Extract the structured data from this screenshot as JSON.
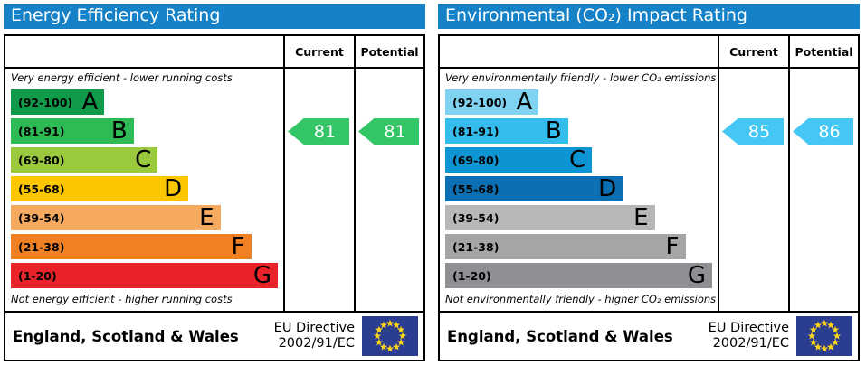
{
  "eu_flag": {
    "bg": "#2b3d90",
    "star": "#ffd617"
  },
  "chart_data": [
    {
      "type": "bar",
      "title": "Energy Efficiency Rating",
      "header_color": "#1581c7",
      "columns": {
        "current": "Current",
        "potential": "Potential"
      },
      "top_note": "Very energy efficient - lower running costs",
      "bottom_note": "Not energy efficient - higher running costs",
      "bands": [
        {
          "letter": "A",
          "range": "(92-100)",
          "range_min": 92,
          "range_max": 100,
          "color": "#119a49",
          "width_pct": 35
        },
        {
          "letter": "B",
          "range": "(81-91)",
          "range_min": 81,
          "range_max": 91,
          "color": "#2eba55",
          "width_pct": 46
        },
        {
          "letter": "C",
          "range": "(69-80)",
          "range_min": 69,
          "range_max": 80,
          "color": "#9ac93d",
          "width_pct": 55
        },
        {
          "letter": "D",
          "range": "(55-68)",
          "range_min": 55,
          "range_max": 68,
          "color": "#fdc700",
          "width_pct": 66.5
        },
        {
          "letter": "E",
          "range": "(39-54)",
          "range_min": 39,
          "range_max": 54,
          "color": "#f6aa60",
          "width_pct": 78.5
        },
        {
          "letter": "F",
          "range": "(21-38)",
          "range_min": 21,
          "range_max": 38,
          "color": "#ef8023",
          "width_pct": 90
        },
        {
          "letter": "G",
          "range": "(1-20)",
          "range_min": 1,
          "range_max": 20,
          "color": "#ea2229",
          "width_pct": 100
        }
      ],
      "current": {
        "value": 81,
        "band": "B",
        "color": "#33c566"
      },
      "potential": {
        "value": 81,
        "band": "B",
        "color": "#33c566"
      },
      "footer": {
        "region": "England, Scotland & Wales",
        "directive": [
          "EU Directive",
          "2002/91/EC"
        ]
      }
    },
    {
      "type": "bar",
      "title": "Environmental (CO₂) Impact Rating",
      "header_color": "#1581c7",
      "columns": {
        "current": "Current",
        "potential": "Potential"
      },
      "top_note": "Very environmentally friendly - lower CO₂ emissions",
      "bottom_note": "Not environmentally friendly - higher CO₂ emissions",
      "bands": [
        {
          "letter": "A",
          "range": "(92-100)",
          "range_min": 92,
          "range_max": 100,
          "color": "#7fd3f1",
          "width_pct": 35
        },
        {
          "letter": "B",
          "range": "(81-91)",
          "range_min": 81,
          "range_max": 91,
          "color": "#33bcec",
          "width_pct": 46
        },
        {
          "letter": "C",
          "range": "(69-80)",
          "range_min": 69,
          "range_max": 80,
          "color": "#0c95d2",
          "width_pct": 55
        },
        {
          "letter": "D",
          "range": "(55-68)",
          "range_min": 55,
          "range_max": 68,
          "color": "#0a70b3",
          "width_pct": 66.5
        },
        {
          "letter": "E",
          "range": "(39-54)",
          "range_min": 39,
          "range_max": 54,
          "color": "#b5b7b9",
          "width_pct": 78.5
        },
        {
          "letter": "F",
          "range": "(21-38)",
          "range_min": 21,
          "range_max": 38,
          "color": "#a3a5a7",
          "width_pct": 90
        },
        {
          "letter": "G",
          "range": "(1-20)",
          "range_min": 1,
          "range_max": 20,
          "color": "#8d8f92",
          "width_pct": 100
        }
      ],
      "current": {
        "value": 85,
        "band": "B",
        "color": "#44c7f4"
      },
      "potential": {
        "value": 86,
        "band": "B",
        "color": "#44c7f4"
      },
      "footer": {
        "region": "England, Scotland & Wales",
        "directive": [
          "EU Directive",
          "2002/91/EC"
        ]
      }
    }
  ]
}
